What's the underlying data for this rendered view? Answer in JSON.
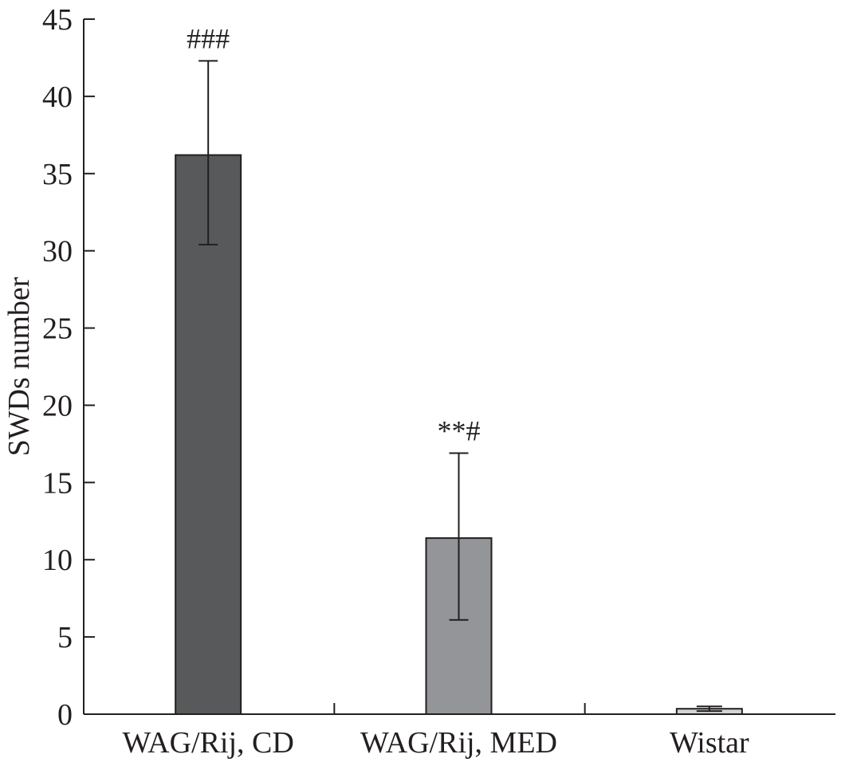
{
  "chart_data": {
    "type": "bar",
    "title": "",
    "xlabel": "",
    "ylabel": "SWDs number",
    "ylim": [
      0,
      45
    ],
    "yticks": [
      0,
      5,
      10,
      15,
      20,
      25,
      30,
      35,
      40,
      45
    ],
    "grid": false,
    "categories": [
      "WAG/Rij, CD",
      "WAG/Rij, MED",
      "Wistar"
    ],
    "values": [
      36.2,
      11.4,
      0.35
    ],
    "error_low": [
      30.4,
      6.1,
      0.2
    ],
    "error_high": [
      42.3,
      16.9,
      0.5
    ],
    "annotations": [
      "###",
      "**#",
      ""
    ],
    "colors": [
      "#58595b",
      "#939598",
      "#d1d3d4"
    ]
  }
}
